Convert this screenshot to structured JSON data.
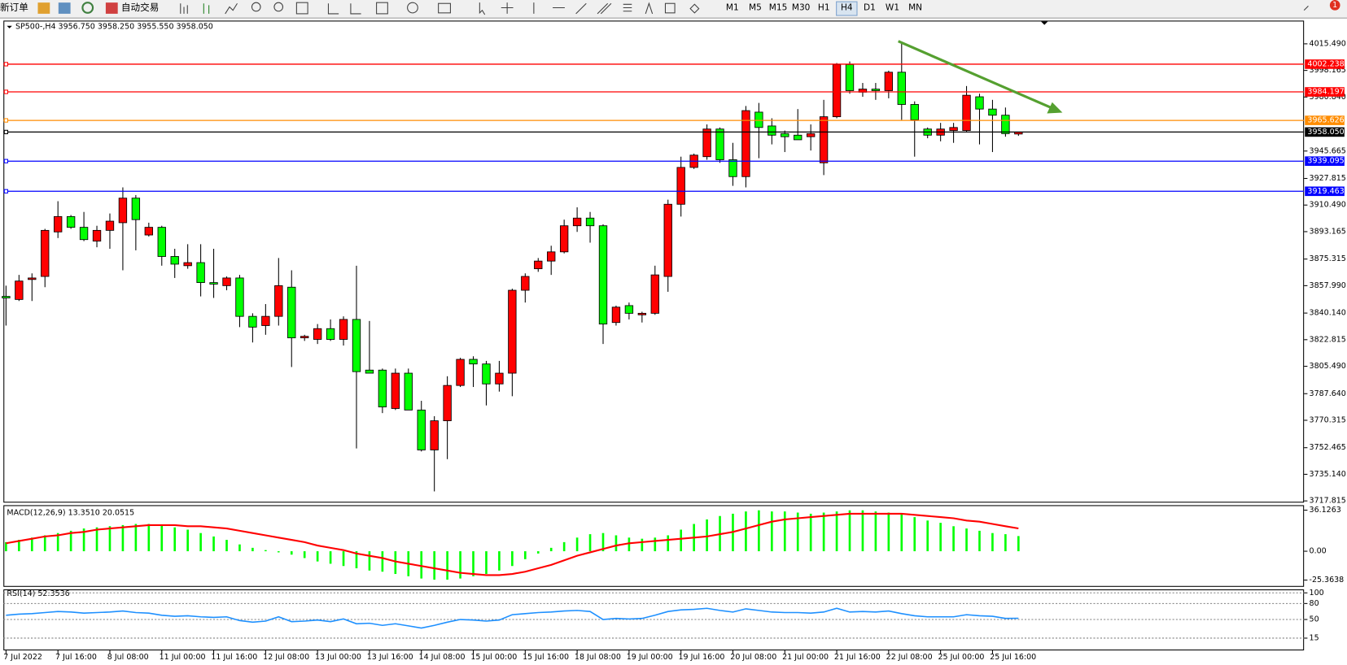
{
  "toolbar": {
    "new_order": "新订单",
    "auto_trading": "自动交易",
    "timeframes": [
      "M1",
      "M5",
      "M15",
      "M30",
      "H1",
      "H4",
      "D1",
      "W1",
      "MN"
    ],
    "active_timeframe": "H4",
    "notification": "1"
  },
  "chart_data": [
    {
      "type": "candlestick",
      "title": "SP500-,H4 3956.750 3958.250 3955.550 3958.050",
      "up_color": "#ff0000",
      "down_color": "#00ff00",
      "categories": [
        "7 Jul 2022",
        null,
        null,
        null,
        "7 Jul 16:00",
        null,
        null,
        null,
        "8 Jul 08:00",
        null,
        null,
        null,
        "11 Jul 00:00",
        null,
        null,
        null,
        "11 Jul 16:00",
        null,
        null,
        null,
        "12 Jul 08:00",
        null,
        null,
        null,
        "13 Jul 00:00",
        null,
        null,
        null,
        "13 Jul 16:00",
        null,
        null,
        null,
        "14 Jul 08:00",
        null,
        null,
        null,
        "15 Jul 00:00",
        null,
        null,
        null,
        "15 Jul 16:00",
        null,
        null,
        null,
        "18 Jul 08:00",
        null,
        null,
        null,
        "19 Jul 00:00",
        null,
        null,
        null,
        "19 Jul 16:00",
        null,
        null,
        null,
        "20 Jul 08:00",
        null,
        null,
        null,
        "21 Jul 00:00",
        null,
        null,
        null,
        "21 Jul 16:00",
        null,
        null,
        null,
        "22 Jul 08:00",
        null,
        null,
        null,
        "25 Jul 00:00",
        null,
        null,
        null,
        "25 Jul 16:00",
        null,
        null
      ],
      "open": [
        3851,
        3849,
        3862,
        3864,
        3893,
        3903,
        3896,
        3887,
        3894,
        3899,
        3915,
        3891,
        3896,
        3877,
        3871,
        3873,
        3860,
        3858,
        3863,
        3838,
        3832,
        3838,
        3857,
        3824,
        3823,
        3830,
        3823,
        3836,
        3803,
        3803,
        3778,
        3801,
        3777,
        3751,
        3770,
        3793,
        3810,
        3807,
        3794,
        3801,
        3855,
        3869,
        3874,
        3880,
        3897,
        3902,
        3897,
        3834,
        3845,
        3839,
        3840,
        3864,
        3911,
        3935,
        3942,
        3960,
        3940,
        3929,
        3971,
        3962,
        3957,
        3956,
        3955,
        3938,
        3968,
        4002,
        3984,
        3986,
        3985,
        3997,
        3976,
        3960,
        3956,
        3959,
        3959,
        3981,
        3973,
        3969,
        3956.75
      ],
      "high": [
        3858,
        3865,
        3866,
        3895,
        3913,
        3904,
        3906,
        3897,
        3905,
        3922,
        3917,
        3899,
        3897,
        3882,
        3885,
        3885,
        3882,
        3864,
        3865,
        3840,
        3846,
        3876,
        3868,
        3826,
        3833,
        3836,
        3838,
        3871,
        3835,
        3804,
        3804,
        3804,
        3783,
        3773,
        3799,
        3811,
        3812,
        3809,
        3809,
        3856,
        3866,
        3876,
        3884,
        3901,
        3909,
        3906,
        3898,
        3845,
        3847,
        3841,
        3871,
        3914,
        3942,
        3944,
        3963,
        3961,
        3951,
        3975,
        3977,
        3967,
        3959,
        3973,
        3963,
        3979,
        4003,
        4004,
        3990,
        3990,
        3998,
        4016,
        3978,
        3961,
        3964,
        3964,
        3988,
        3983,
        3979,
        3974,
        3958.25
      ],
      "low": [
        3832,
        3848,
        3848,
        3857,
        3889,
        3895,
        3887,
        3883,
        3882,
        3868,
        3881,
        3890,
        3871,
        3863,
        3869,
        3851,
        3850,
        3855,
        3831,
        3821,
        3826,
        3832,
        3805,
        3822,
        3820,
        3822,
        3819,
        3752,
        3801,
        3775,
        3777,
        3777,
        3750,
        3724,
        3745,
        3792,
        3792,
        3780,
        3789,
        3786,
        3847,
        3867,
        3865,
        3879,
        3893,
        3886,
        3820,
        3832,
        3836,
        3834,
        3839,
        3854,
        3903,
        3934,
        3940,
        3938,
        3923,
        3922,
        3941,
        3950,
        3945,
        3953,
        3946,
        3930,
        3967,
        3983,
        3981,
        3979,
        3980,
        3966,
        3942,
        3954,
        3952,
        3951,
        3958,
        3950,
        3945,
        3955,
        3955.55
      ],
      "close": [
        3850,
        3861,
        3863,
        3894,
        3903,
        3896,
        3888,
        3894,
        3900,
        3915,
        3901,
        3896,
        3877,
        3872,
        3873,
        3860,
        3859,
        3863,
        3838,
        3831,
        3838,
        3858,
        3824,
        3825,
        3830,
        3823,
        3836,
        3802,
        3801,
        3779,
        3801,
        3777,
        3751,
        3770,
        3793,
        3810,
        3807,
        3794,
        3801,
        3855,
        3864,
        3874,
        3880,
        3897,
        3902,
        3897,
        3833,
        3844,
        3840,
        3840,
        3865,
        3911,
        3935,
        3943,
        3960,
        3940,
        3929,
        3972,
        3961,
        3956,
        3955,
        3953,
        3957,
        3968,
        4002,
        3985,
        3986,
        3985,
        3997,
        3976,
        3966,
        3956,
        3960,
        3961,
        3982,
        3973,
        3969,
        3957,
        3958.05
      ],
      "ylim": [
        3716.7,
        4030.6
      ],
      "yticks": [
        {
          "value": 4015.49,
          "label": "4015.490"
        },
        {
          "value": 3998.165,
          "label": "3998.165"
        },
        {
          "value": 3980.84,
          "label": "3980.840"
        },
        {
          "value": 3945.665,
          "label": "3945.665"
        },
        {
          "value": 3927.815,
          "label": "3927.815"
        },
        {
          "value": 3910.49,
          "label": "3910.490"
        },
        {
          "value": 3893.165,
          "label": "3893.165"
        },
        {
          "value": 3875.315,
          "label": "3875.315"
        },
        {
          "value": 3857.99,
          "label": "3857.990"
        },
        {
          "value": 3840.14,
          "label": "3840.140"
        },
        {
          "value": 3822.815,
          "label": "3822.815"
        },
        {
          "value": 3805.49,
          "label": "3805.490"
        },
        {
          "value": 3787.64,
          "label": "3787.640"
        },
        {
          "value": 3770.315,
          "label": "3770.315"
        },
        {
          "value": 3752.465,
          "label": "3752.465"
        },
        {
          "value": 3735.14,
          "label": "3735.140"
        },
        {
          "value": 3717.815,
          "label": "3717.815"
        }
      ],
      "levels": [
        {
          "value": 4002.238,
          "color": "#ff0000"
        },
        {
          "value": 3984.197,
          "color": "#ff0000"
        },
        {
          "value": 3965.626,
          "color": "#ff8c00"
        },
        {
          "value": 3958.05,
          "label": "3958.050",
          "color": "#000000"
        },
        {
          "value": 3939.095,
          "color": "#0000ff"
        },
        {
          "value": 3919.463,
          "color": "#0000ff"
        }
      ]
    },
    {
      "type": "combo",
      "title": "MACD(12,26,9) 13.3510 20.0515",
      "ylim": [
        -31.3,
        40.5
      ],
      "yticks": [
        36.1263,
        {
          "value": 0,
          "label": "0.00"
        },
        -25.3638
      ],
      "series": [
        {
          "type": "bar",
          "color": "#00ff00",
          "values": [
            8,
            10,
            12,
            14,
            16,
            18,
            20,
            21,
            22,
            23,
            24,
            24,
            23,
            21,
            19,
            16,
            13,
            10,
            6,
            3,
            1,
            -1,
            -3,
            -6,
            -9,
            -11,
            -13,
            -15,
            -17,
            -18,
            -20,
            -22,
            -24,
            -25,
            -25,
            -24,
            -22,
            -20,
            -17,
            -13,
            -7,
            -2,
            3,
            8,
            12,
            15,
            16,
            14,
            12,
            11,
            12,
            14,
            19,
            24,
            28,
            31,
            33,
            35,
            36,
            35,
            35,
            34,
            33,
            34,
            35,
            36,
            36,
            35,
            34,
            33,
            30,
            27,
            25,
            22,
            20,
            18,
            16,
            15,
            13.351
          ]
        },
        {
          "type": "line",
          "color": "#ff0000",
          "values": [
            7,
            9,
            11,
            13,
            14,
            16,
            17,
            19,
            20,
            21,
            22,
            23,
            23,
            23,
            22,
            22,
            21,
            20,
            18,
            16,
            14,
            12,
            10,
            8,
            5,
            3,
            1,
            -2,
            -4,
            -6,
            -9,
            -11,
            -13,
            -15,
            -17,
            -19,
            -20,
            -21,
            -21,
            -20,
            -18,
            -15,
            -12,
            -8,
            -4,
            -1,
            2,
            5,
            7,
            8,
            9,
            10,
            11,
            12,
            13,
            15,
            17,
            20,
            23,
            26,
            28,
            29,
            30,
            31,
            32,
            33,
            33,
            33,
            33,
            33,
            32,
            31,
            30,
            29,
            27,
            26,
            24,
            22,
            20.052
          ]
        }
      ]
    },
    {
      "type": "line",
      "title": "RSI(14) 52.3536",
      "color": "#1e90ff",
      "ylim": [
        -8,
        106.5
      ],
      "yticks": [
        100,
        80,
        50,
        15
      ],
      "grid": "dashed",
      "values": [
        58,
        60,
        61,
        63,
        65,
        64,
        62,
        63,
        64,
        66,
        63,
        62,
        58,
        56,
        57,
        55,
        54,
        55,
        48,
        45,
        47,
        55,
        46,
        47,
        49,
        46,
        51,
        42,
        43,
        39,
        42,
        38,
        34,
        39,
        45,
        50,
        49,
        47,
        49,
        59,
        61,
        63,
        64,
        66,
        67,
        65,
        50,
        52,
        51,
        52,
        58,
        65,
        68,
        69,
        71,
        67,
        64,
        70,
        67,
        64,
        63,
        63,
        62,
        64,
        71,
        64,
        65,
        64,
        66,
        61,
        57,
        55,
        55,
        55,
        59,
        57,
        56,
        52,
        52.354
      ]
    }
  ]
}
